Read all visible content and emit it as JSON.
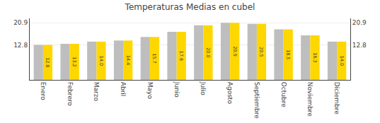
{
  "chart_data": {
    "type": "bar",
    "title": "Temperaturas Medias en cubel",
    "categories": [
      "Enero",
      "Febrero",
      "Marzo",
      "Abril",
      "Mayo",
      "Junio",
      "Julio",
      "Agosto",
      "Septiembre",
      "Octubre",
      "Noviembre",
      "Diciembre"
    ],
    "series": [
      {
        "color": "#BEBEBE",
        "values": [
          12.8,
          13.2,
          14.0,
          14.4,
          15.7,
          17.6,
          20.0,
          20.9,
          20.5,
          18.5,
          16.3,
          14.0
        ]
      },
      {
        "color": "#FFD700",
        "values": [
          12.8,
          13.2,
          14.0,
          14.4,
          15.7,
          17.6,
          20.0,
          20.9,
          20.5,
          18.5,
          16.3,
          14.0
        ],
        "value_labels": [
          "12.8",
          "13.2",
          "14.0",
          "14.4",
          "15.7",
          "17.6",
          "20.0",
          "20.9",
          "20.5",
          "18.5",
          "16.3",
          "14.0"
        ]
      }
    ],
    "ylim": [
      0,
      22.5
    ],
    "yticks": [
      12.8,
      20.9
    ],
    "y2lim": [
      0,
      22.5
    ],
    "y2ticks": [
      12.8,
      20.9
    ],
    "grid": true,
    "data_labels": true
  }
}
